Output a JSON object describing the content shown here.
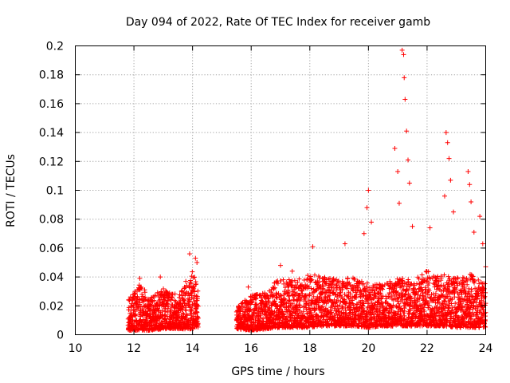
{
  "chart_data": {
    "type": "scatter",
    "title": "Day 094 of 2022, Rate Of TEC Index for receiver gamb",
    "xlabel": "GPS time / hours",
    "ylabel": "ROTI / TECUs",
    "xlim": [
      10,
      24
    ],
    "ylim": [
      0,
      0.2
    ],
    "xticks": [
      10,
      12,
      14,
      16,
      18,
      20,
      22,
      24
    ],
    "yticks": [
      0,
      0.02,
      0.04,
      0.06,
      0.08,
      0.1,
      0.12,
      0.14,
      0.16,
      0.18,
      0.2
    ],
    "xtick_labels": [
      "10",
      "12",
      "14",
      "16",
      "18",
      "20",
      "22",
      "24"
    ],
    "ytick_labels": [
      "0",
      "0.02",
      "0.04",
      "0.06",
      "0.08",
      "0.1",
      "0.12",
      "0.14",
      "0.16",
      "0.18",
      "0.2"
    ],
    "grid": true,
    "marker": "+",
    "color": "#ff0000",
    "series": [
      {
        "name": "ROTI",
        "envelope": [
          {
            "x": 11.8,
            "base": 0.003,
            "top": 0.027
          },
          {
            "x": 12.2,
            "base": 0.003,
            "top": 0.035
          },
          {
            "x": 12.6,
            "base": 0.003,
            "top": 0.027
          },
          {
            "x": 13.0,
            "base": 0.004,
            "top": 0.032
          },
          {
            "x": 13.5,
            "base": 0.004,
            "top": 0.028
          },
          {
            "x": 14.0,
            "base": 0.004,
            "top": 0.045
          },
          {
            "x": 14.2,
            "base": 0.005,
            "top": 0.03
          },
          {
            "x": 15.5,
            "base": 0.004,
            "top": 0.02
          },
          {
            "x": 16.0,
            "base": 0.003,
            "top": 0.028
          },
          {
            "x": 16.5,
            "base": 0.004,
            "top": 0.03
          },
          {
            "x": 17.0,
            "base": 0.005,
            "top": 0.04
          },
          {
            "x": 17.5,
            "base": 0.005,
            "top": 0.038
          },
          {
            "x": 18.0,
            "base": 0.005,
            "top": 0.042
          },
          {
            "x": 18.5,
            "base": 0.006,
            "top": 0.04
          },
          {
            "x": 19.0,
            "base": 0.006,
            "top": 0.038
          },
          {
            "x": 19.5,
            "base": 0.006,
            "top": 0.04
          },
          {
            "x": 20.0,
            "base": 0.005,
            "top": 0.036
          },
          {
            "x": 20.5,
            "base": 0.006,
            "top": 0.035
          },
          {
            "x": 21.0,
            "base": 0.006,
            "top": 0.04
          },
          {
            "x": 21.5,
            "base": 0.006,
            "top": 0.038
          },
          {
            "x": 22.0,
            "base": 0.006,
            "top": 0.045
          },
          {
            "x": 22.5,
            "base": 0.006,
            "top": 0.042
          },
          {
            "x": 23.0,
            "base": 0.005,
            "top": 0.04
          },
          {
            "x": 23.5,
            "base": 0.005,
            "top": 0.042
          },
          {
            "x": 24.0,
            "base": 0.005,
            "top": 0.035
          }
        ],
        "spikes": [
          {
            "x": 12.2,
            "y": 0.039
          },
          {
            "x": 12.9,
            "y": 0.04
          },
          {
            "x": 13.9,
            "y": 0.056
          },
          {
            "x": 14.1,
            "y": 0.053
          },
          {
            "x": 14.15,
            "y": 0.05
          },
          {
            "x": 15.9,
            "y": 0.033
          },
          {
            "x": 17.0,
            "y": 0.048
          },
          {
            "x": 17.4,
            "y": 0.044
          },
          {
            "x": 18.1,
            "y": 0.061
          },
          {
            "x": 19.2,
            "y": 0.063
          },
          {
            "x": 19.85,
            "y": 0.07
          },
          {
            "x": 20.0,
            "y": 0.1
          },
          {
            "x": 19.95,
            "y": 0.088
          },
          {
            "x": 20.1,
            "y": 0.078
          },
          {
            "x": 20.9,
            "y": 0.129
          },
          {
            "x": 21.0,
            "y": 0.113
          },
          {
            "x": 21.05,
            "y": 0.091
          },
          {
            "x": 21.15,
            "y": 0.197
          },
          {
            "x": 21.2,
            "y": 0.194
          },
          {
            "x": 21.22,
            "y": 0.178
          },
          {
            "x": 21.25,
            "y": 0.163
          },
          {
            "x": 21.3,
            "y": 0.141
          },
          {
            "x": 21.35,
            "y": 0.121
          },
          {
            "x": 21.4,
            "y": 0.105
          },
          {
            "x": 21.5,
            "y": 0.075
          },
          {
            "x": 22.1,
            "y": 0.074
          },
          {
            "x": 22.6,
            "y": 0.096
          },
          {
            "x": 22.65,
            "y": 0.14
          },
          {
            "x": 22.7,
            "y": 0.133
          },
          {
            "x": 22.75,
            "y": 0.122
          },
          {
            "x": 22.8,
            "y": 0.107
          },
          {
            "x": 22.9,
            "y": 0.085
          },
          {
            "x": 23.4,
            "y": 0.113
          },
          {
            "x": 23.45,
            "y": 0.104
          },
          {
            "x": 23.5,
            "y": 0.092
          },
          {
            "x": 23.6,
            "y": 0.071
          },
          {
            "x": 23.8,
            "y": 0.082
          },
          {
            "x": 23.9,
            "y": 0.063
          },
          {
            "x": 24.0,
            "y": 0.047
          }
        ]
      }
    ]
  }
}
